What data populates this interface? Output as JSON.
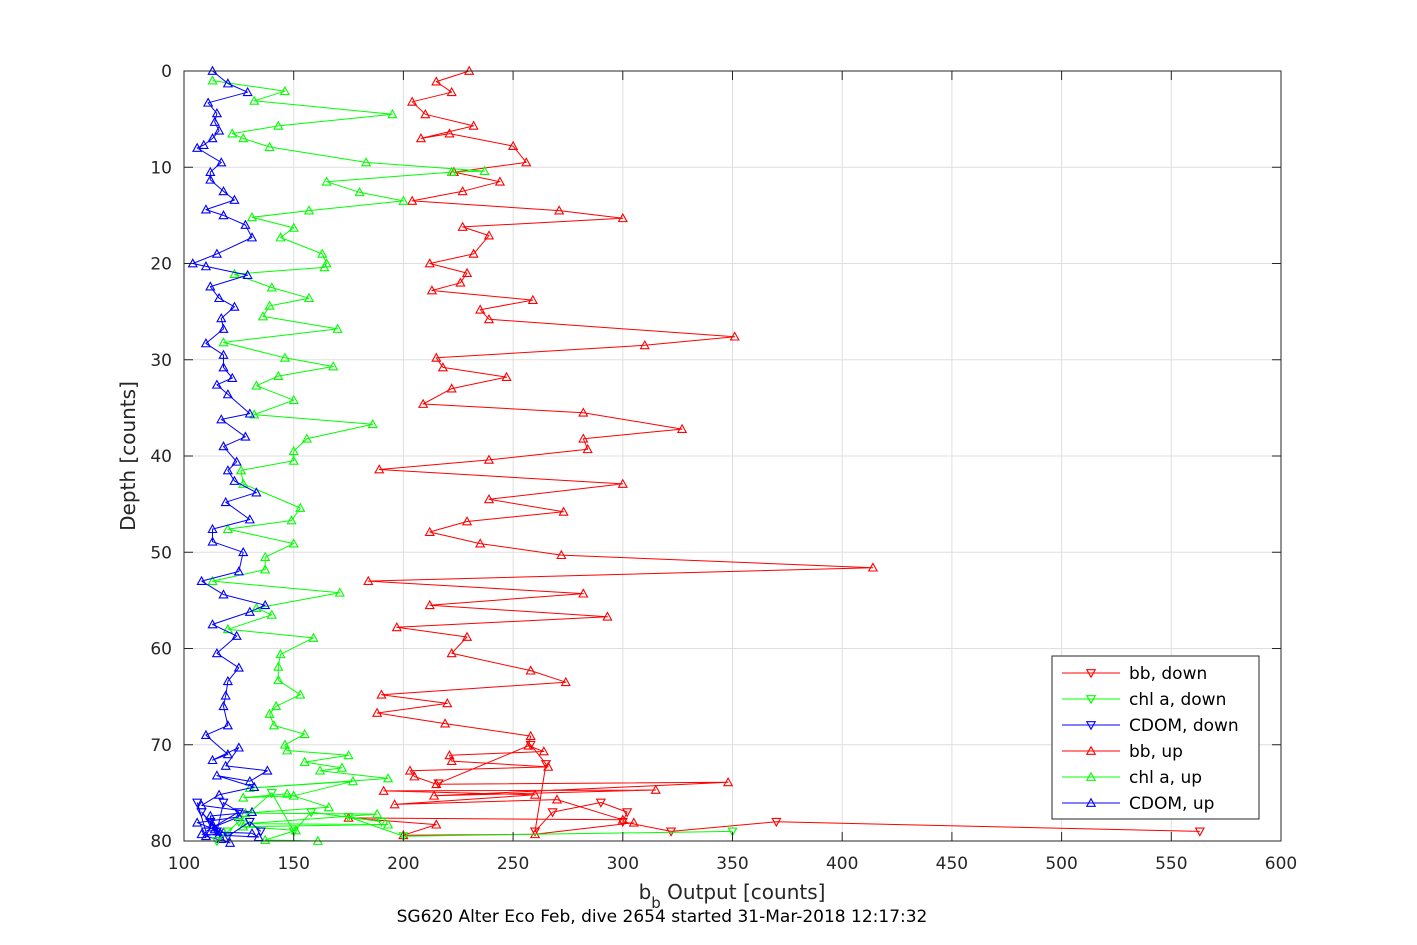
{
  "chart_data": {
    "type": "line",
    "title": "SG620 Alter Eco Feb, dive 2654 started 31-Mar-2018 12:17:32",
    "xlabel_main": "b",
    "xlabel_sub": "b",
    "xlabel_rest": " Output [counts]",
    "ylabel": "Depth [counts]",
    "xlim": [
      100,
      600
    ],
    "ylim": [
      0,
      80
    ],
    "y_reversed": true,
    "grid": true,
    "legend_position": "bottom-right",
    "xticks": [
      100,
      150,
      200,
      250,
      300,
      350,
      400,
      450,
      500,
      550,
      600
    ],
    "yticks": [
      0,
      10,
      20,
      30,
      40,
      50,
      60,
      70,
      80
    ],
    "series": [
      {
        "name": "bb, down",
        "color": "#ff0000",
        "marker": "triangle-down",
        "x": [
          563,
          370,
          322,
          300,
          302,
          290,
          268,
          260,
          265,
          258,
          216
        ],
        "y": [
          79,
          78,
          79,
          78,
          77,
          76,
          77,
          79,
          72,
          70,
          74
        ]
      },
      {
        "name": "chl a, down",
        "color": "#00ff00",
        "marker": "triangle-down",
        "x": [
          350,
          200,
          175,
          190,
          158,
          150,
          140,
          125,
          120,
          115
        ],
        "y": [
          79,
          79.5,
          77.5,
          78,
          77,
          79,
          75,
          78,
          79,
          80
        ]
      },
      {
        "name": "CDOM, down",
        "color": "#0000ff",
        "marker": "triangle-down",
        "x": [
          135,
          130,
          120,
          112,
          108,
          115,
          118,
          125,
          110,
          106
        ],
        "y": [
          79,
          78,
          79.5,
          78,
          77,
          79,
          76,
          77,
          79,
          76
        ]
      },
      {
        "name": "bb, up",
        "color": "#ff0000",
        "marker": "triangle-up",
        "x": [
          230,
          215,
          222,
          204,
          210,
          232,
          208,
          221,
          250,
          256,
          223,
          244,
          227,
          204,
          271,
          300,
          227,
          239,
          232,
          212,
          229,
          226,
          213,
          259,
          235,
          239,
          351,
          310,
          215,
          218,
          247,
          222,
          209,
          282,
          327,
          282,
          284,
          239,
          189,
          300,
          239,
          273,
          229,
          212,
          235,
          272,
          414,
          184,
          282,
          212,
          293,
          197,
          229,
          222,
          258,
          274,
          190,
          220,
          188,
          219,
          258,
          257,
          264,
          221,
          222,
          266,
          203,
          205,
          215,
          348,
          214,
          315,
          191,
          260,
          196,
          270,
          300,
          175,
          215,
          200,
          260,
          305
        ],
        "y": [
          0,
          1.1,
          2.2,
          3.2,
          4.5,
          5.7,
          7,
          6.5,
          7.8,
          9.5,
          10.5,
          11.5,
          12.5,
          13.5,
          14.5,
          15.3,
          16.2,
          17.1,
          19,
          20,
          21,
          22,
          22.8,
          23.8,
          24.8,
          25.8,
          27.6,
          28.5,
          29.8,
          30.8,
          31.8,
          33,
          34.6,
          35.5,
          37.2,
          38.2,
          39.3,
          40.4,
          41.4,
          42.9,
          44.5,
          45.8,
          46.8,
          47.9,
          49.1,
          50.3,
          51.6,
          53,
          54.3,
          55.5,
          56.7,
          57.8,
          58.8,
          60.5,
          62.3,
          63.5,
          64.8,
          65.7,
          66.7,
          67.8,
          69.1,
          70.1,
          70.7,
          71.1,
          71.7,
          72.3,
          72.7,
          73.3,
          74.1,
          73.9,
          75.3,
          74.7,
          74.8,
          75.2,
          76.2,
          75.7,
          77.8,
          77.6,
          78.3,
          79.4,
          79.3,
          78.1
        ]
      },
      {
        "name": "chl a, up",
        "color": "#00ff00",
        "marker": "triangle-up",
        "x": [
          113,
          146,
          132,
          195,
          143,
          122,
          127,
          139,
          183,
          237,
          222,
          165,
          180,
          200,
          157,
          131,
          150,
          144,
          163,
          165,
          164,
          123,
          140,
          157,
          139,
          136,
          170,
          118,
          146,
          168,
          143,
          133,
          150,
          132,
          186,
          156,
          150,
          150,
          126,
          127,
          153,
          149,
          120,
          150,
          137,
          137,
          113,
          171,
          133,
          140,
          120,
          159,
          144,
          143,
          143,
          153,
          142,
          139,
          141,
          155,
          146,
          147,
          175,
          155,
          172,
          162,
          193,
          130,
          177,
          150,
          127,
          147,
          166,
          128,
          188,
          128,
          193,
          127,
          151,
          137,
          161
        ],
        "y": [
          1,
          2.1,
          3.1,
          4.5,
          5.7,
          6.5,
          7,
          7.9,
          9.5,
          10.4,
          10.5,
          11.5,
          12.6,
          13.5,
          14.5,
          15.2,
          16.3,
          17.3,
          19,
          20,
          20.4,
          21.1,
          22.5,
          23.6,
          24.4,
          25.5,
          26.8,
          28.2,
          29.8,
          30.7,
          31.7,
          32.7,
          34.2,
          35.7,
          36.7,
          38.2,
          39.5,
          40.5,
          41.5,
          42.9,
          45.4,
          46.7,
          47.6,
          49.1,
          50.5,
          51.8,
          53,
          54.2,
          55.8,
          56.5,
          58,
          58.9,
          60.6,
          61.9,
          63.3,
          64.8,
          66,
          66.8,
          68,
          68.9,
          70,
          70.6,
          71.1,
          71.8,
          72.4,
          72.7,
          73.5,
          74.5,
          73.8,
          75.3,
          75.5,
          75.1,
          76.5,
          77.1,
          77.2,
          78.2,
          78.3,
          78.5,
          78.9,
          79.9,
          80
        ]
      },
      {
        "name": "CDOM, up",
        "color": "#0000ff",
        "marker": "triangle-up",
        "x": [
          113,
          120,
          129,
          111,
          115,
          114,
          116,
          113,
          109,
          106,
          117,
          112,
          112,
          118,
          123,
          110,
          118,
          128,
          131,
          115,
          104,
          110,
          129,
          112,
          116,
          123,
          117,
          118,
          110,
          118,
          118,
          122,
          115,
          120,
          130,
          117,
          128,
          118,
          124,
          120,
          123,
          133,
          119,
          130,
          113,
          113,
          127,
          125,
          108,
          118,
          137,
          130,
          113,
          124,
          115,
          125,
          120,
          119,
          118,
          120,
          110,
          120,
          113,
          125,
          119,
          138,
          130,
          115,
          132,
          116,
          108,
          131,
          112,
          113,
          116,
          113,
          125,
          106,
          114,
          117,
          121,
          110,
          118,
          131,
          134,
          108
        ],
        "y": [
          0,
          1.3,
          2.2,
          3.3,
          4.4,
          5.3,
          6.2,
          7,
          7.7,
          8,
          9.5,
          10.5,
          11.3,
          12.5,
          13.4,
          14.4,
          15,
          16,
          17.3,
          19,
          20,
          20.3,
          21.2,
          22.4,
          23.6,
          24.5,
          25.7,
          26.8,
          28.3,
          29.5,
          30.8,
          31.9,
          32.6,
          33.6,
          35.6,
          36.2,
          38,
          39,
          40.6,
          41.5,
          42.6,
          43.8,
          44.8,
          46.6,
          47.6,
          48.9,
          50,
          52,
          53,
          54.4,
          55.5,
          56.2,
          57.5,
          58.7,
          60.5,
          62,
          63.4,
          64.9,
          66,
          68,
          69,
          71,
          71.6,
          70.3,
          72.2,
          72.7,
          73.8,
          73.2,
          74.4,
          75.2,
          76.3,
          77,
          77.4,
          78.3,
          79.3,
          78.6,
          77.5,
          78.1,
          78.8,
          79.8,
          80.2,
          79.5,
          79.1,
          79.2,
          79.6,
          79.3
        ]
      }
    ]
  }
}
